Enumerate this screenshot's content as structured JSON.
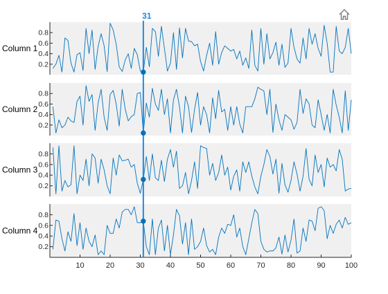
{
  "toolbar": {
    "home_icon": "home-icon"
  },
  "cursor": {
    "label": "31",
    "color": "#1e88e5"
  },
  "colors": {
    "line": "#0072bd",
    "panel_bg": "#f0f0f0",
    "axis": "#262626",
    "tick_text": "#262626"
  },
  "chart_data": {
    "type": "line",
    "layout": "stacked",
    "x": [
      1,
      2,
      3,
      4,
      5,
      6,
      7,
      8,
      9,
      10,
      11,
      12,
      13,
      14,
      15,
      16,
      17,
      18,
      19,
      20,
      21,
      22,
      23,
      24,
      25,
      26,
      27,
      28,
      29,
      30,
      31,
      32,
      33,
      34,
      35,
      36,
      37,
      38,
      39,
      40,
      41,
      42,
      43,
      44,
      45,
      46,
      47,
      48,
      49,
      50,
      51,
      52,
      53,
      54,
      55,
      56,
      57,
      58,
      59,
      60,
      61,
      62,
      63,
      64,
      65,
      66,
      67,
      68,
      69,
      70,
      71,
      72,
      73,
      74,
      75,
      76,
      77,
      78,
      79,
      80,
      81,
      82,
      83,
      84,
      85,
      86,
      87,
      88,
      89,
      90,
      91,
      92,
      93,
      94,
      95,
      96,
      97,
      98,
      99,
      100
    ],
    "xlim": [
      0,
      100
    ],
    "xticks": [
      10,
      20,
      30,
      40,
      50,
      60,
      70,
      80,
      90,
      100
    ],
    "ylim": [
      0,
      1
    ],
    "yticks": [
      0.2,
      0.4,
      0.6,
      0.8
    ],
    "cursor_x": 31,
    "series": [
      {
        "name": "Column 1",
        "values": [
          0.12,
          0.2,
          0.37,
          0.05,
          0.7,
          0.65,
          0.22,
          0.05,
          0.38,
          0.42,
          0.08,
          0.88,
          0.4,
          0.85,
          0.1,
          0.54,
          0.78,
          0.55,
          0.06,
          0.98,
          0.85,
          0.58,
          0.15,
          0.06,
          0.28,
          0.4,
          0.12,
          0.5,
          0.38,
          0.07,
          0.05,
          0.52,
          0.15,
          0.88,
          0.82,
          0.35,
          0.92,
          0.5,
          0.07,
          0.22,
          0.8,
          0.1,
          0.89,
          0.32,
          0.88,
          0.64,
          0.63,
          0.55,
          0.58,
          0.25,
          0.07,
          0.37,
          0.6,
          0.18,
          0.82,
          0.2,
          0.42,
          0.55,
          0.5,
          0.45,
          0.48,
          0.3,
          0.45,
          0.18,
          0.32,
          0.12,
          0.85,
          0.18,
          0.07,
          0.88,
          0.2,
          0.78,
          0.3,
          0.42,
          0.62,
          0.18,
          0.58,
          0.14,
          0.22,
          0.88,
          0.52,
          0.3,
          0.22,
          0.7,
          0.3,
          0.88,
          0.58,
          0.78,
          0.5,
          0.35,
          0.94,
          0.6,
          0.05,
          0.05,
          0.92,
          0.45,
          0.4,
          0.52,
          0.88,
          0.4
        ]
      },
      {
        "name": "Column 2",
        "values": [
          0.55,
          0.05,
          0.3,
          0.15,
          0.2,
          0.35,
          0.28,
          0.25,
          0.65,
          0.75,
          0.2,
          0.95,
          0.65,
          0.78,
          0.1,
          0.62,
          0.88,
          0.35,
          0.1,
          0.78,
          0.86,
          0.6,
          0.18,
          0.88,
          0.5,
          0.28,
          0.36,
          0.4,
          0.8,
          0.82,
          0.05,
          0.62,
          0.35,
          0.9,
          0.6,
          0.48,
          0.88,
          0.4,
          0.7,
          0.05,
          0.68,
          0.88,
          0.55,
          0.05,
          0.75,
          0.55,
          0.06,
          0.5,
          0.82,
          0.2,
          0.55,
          0.4,
          0.05,
          0.72,
          0.32,
          0.86,
          0.45,
          0.5,
          0.1,
          0.55,
          0.2,
          0.55,
          0.22,
          0.05,
          0.55,
          0.55,
          0.55,
          0.7,
          0.92,
          0.88,
          0.85,
          0.4,
          0.88,
          0.06,
          0.6,
          0.3,
          0.1,
          0.4,
          0.35,
          0.3,
          0.12,
          0.25,
          0.88,
          0.42,
          0.7,
          0.6,
          0.2,
          0.15,
          0.68,
          0.4,
          0.1,
          0.4,
          0.05,
          0.88,
          0.58,
          0.35,
          0.05,
          0.85,
          0.1,
          0.68
        ]
      },
      {
        "name": "Column 3",
        "values": [
          0.92,
          0.05,
          0.95,
          0.1,
          0.3,
          0.18,
          0.22,
          0.95,
          0.05,
          0.4,
          0.3,
          0.7,
          0.2,
          0.8,
          0.72,
          0.25,
          0.7,
          0.5,
          0.2,
          0.05,
          0.72,
          0.4,
          0.78,
          0.67,
          0.68,
          0.7,
          0.55,
          0.6,
          0.25,
          0.06,
          0.32,
          0.75,
          0.3,
          0.8,
          0.35,
          0.3,
          0.68,
          0.28,
          0.7,
          0.88,
          0.55,
          0.85,
          0.15,
          0.2,
          0.45,
          0.05,
          0.3,
          0.65,
          0.15,
          0.95,
          0.92,
          0.9,
          0.4,
          0.62,
          0.3,
          0.45,
          0.78,
          0.4,
          0.55,
          0.12,
          0.38,
          0.5,
          0.1,
          0.65,
          0.45,
          0.65,
          0.38,
          0.18,
          0.05,
          0.38,
          0.6,
          0.88,
          0.75,
          0.42,
          0.7,
          0.06,
          0.62,
          0.22,
          0.08,
          0.3,
          0.65,
          0.42,
          0.1,
          0.38,
          0.9,
          0.32,
          0.2,
          0.78,
          0.45,
          0.6,
          0.18,
          0.72,
          0.55,
          0.6,
          0.48,
          0.88,
          0.7,
          0.1,
          0.14,
          0.15
        ]
      },
      {
        "name": "Column 4",
        "values": [
          0.15,
          0.7,
          0.68,
          0.35,
          0.12,
          0.48,
          0.3,
          0.82,
          0.22,
          0.65,
          0.15,
          0.55,
          0.3,
          0.2,
          0.42,
          0.05,
          0.12,
          0.05,
          0.6,
          0.45,
          0.45,
          0.72,
          0.55,
          0.85,
          0.9,
          0.9,
          0.8,
          0.95,
          0.65,
          0.65,
          0.68,
          0.2,
          0.05,
          0.72,
          0.05,
          0.55,
          0.7,
          0.12,
          0.6,
          0.05,
          0.42,
          0.9,
          0.78,
          0.25,
          0.65,
          0.05,
          0.72,
          0.15,
          0.2,
          0.3,
          0.55,
          0.22,
          0.1,
          0.15,
          0.05,
          0.38,
          0.55,
          0.45,
          0.62,
          0.6,
          0.8,
          0.38,
          0.55,
          0.2,
          0.05,
          0.35,
          0.65,
          0.9,
          0.82,
          0.3,
          0.15,
          0.1,
          0.12,
          0.12,
          0.18,
          0.38,
          0.06,
          0.42,
          0.1,
          0.32,
          0.72,
          0.08,
          0.12,
          0.55,
          0.3,
          0.7,
          0.68,
          0.5,
          0.92,
          0.95,
          0.88,
          0.35,
          0.6,
          0.45,
          0.62,
          0.7,
          0.55,
          0.75,
          0.62,
          0.65
        ]
      }
    ]
  }
}
